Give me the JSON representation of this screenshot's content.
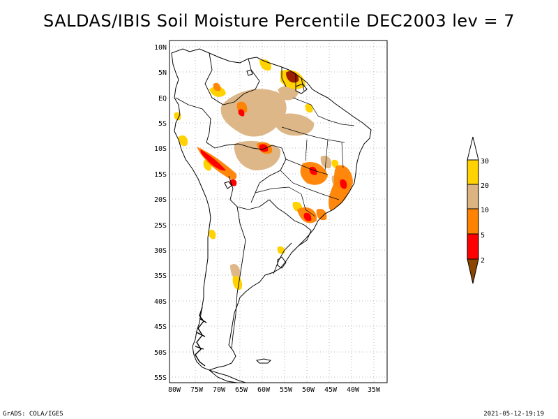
{
  "title": "SALDAS/IBIS Soil Moisture Percentile DEC2003 lev = 7",
  "map": {
    "lat_labels": [
      "10N",
      "5N",
      "EQ",
      "5S",
      "10S",
      "15S",
      "20S",
      "25S",
      "30S",
      "35S",
      "40S",
      "45S",
      "50S",
      "55S"
    ],
    "lon_labels": [
      "80W",
      "75W",
      "70W",
      "65W",
      "60W",
      "55W",
      "50W",
      "45W",
      "40W",
      "35W"
    ]
  },
  "colorbar": {
    "labels": [
      "30",
      "20",
      "10",
      "5",
      "2"
    ],
    "colors": {
      "above_30": "#ffffff",
      "20_30": "#ffd200",
      "10_20": "#dcb482",
      "5_10": "#ff8200",
      "2_5": "#ff0000",
      "below_2": "#8c4600"
    }
  },
  "footer": {
    "left": "GrADS: COLA/IGES",
    "right": "2021-05-12-19:19"
  }
}
